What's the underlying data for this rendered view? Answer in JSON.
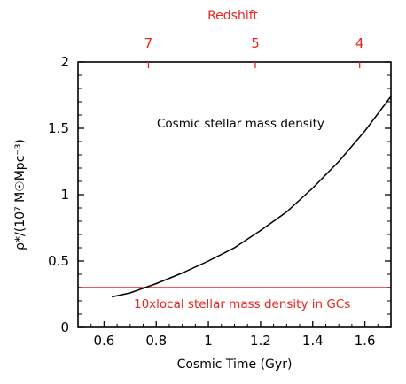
{
  "chart_data": {
    "type": "line",
    "xlabel": "Cosmic Time (Gyr)",
    "ylabel": "ρ*/(10⁷ M☉Mpc⁻³)",
    "top_axis_label": "Redshift",
    "xlim": [
      0.5,
      1.7
    ],
    "ylim": [
      0,
      2
    ],
    "x_ticks": [
      0.6,
      0.8,
      1,
      1.2,
      1.4,
      1.6
    ],
    "x_tick_labels": [
      "0.6",
      "0.8",
      "1",
      "1.2",
      "1.4",
      "1.6"
    ],
    "y_ticks": [
      0,
      0.5,
      1,
      1.5,
      2
    ],
    "y_tick_labels": [
      "0",
      "0.5",
      "1",
      "1.5",
      "2"
    ],
    "top_ticks": [
      {
        "label": "7",
        "x": 0.77
      },
      {
        "label": "5",
        "x": 1.18
      },
      {
        "label": "4",
        "x": 1.58
      }
    ],
    "grid": false,
    "series": [
      {
        "name": "Cosmic stellar mass density",
        "color": "#000000",
        "x": [
          0.63,
          0.7,
          0.8,
          0.9,
          1.0,
          1.1,
          1.2,
          1.3,
          1.4,
          1.5,
          1.6,
          1.7
        ],
        "y": [
          0.23,
          0.26,
          0.33,
          0.41,
          0.5,
          0.6,
          0.73,
          0.87,
          1.05,
          1.25,
          1.48,
          1.74
        ]
      }
    ],
    "reference_lines": [
      {
        "name": "10xlocal stellar mass density in GCs",
        "orientation": "horizontal",
        "y": 0.3,
        "color": "#e8241f"
      }
    ]
  }
}
